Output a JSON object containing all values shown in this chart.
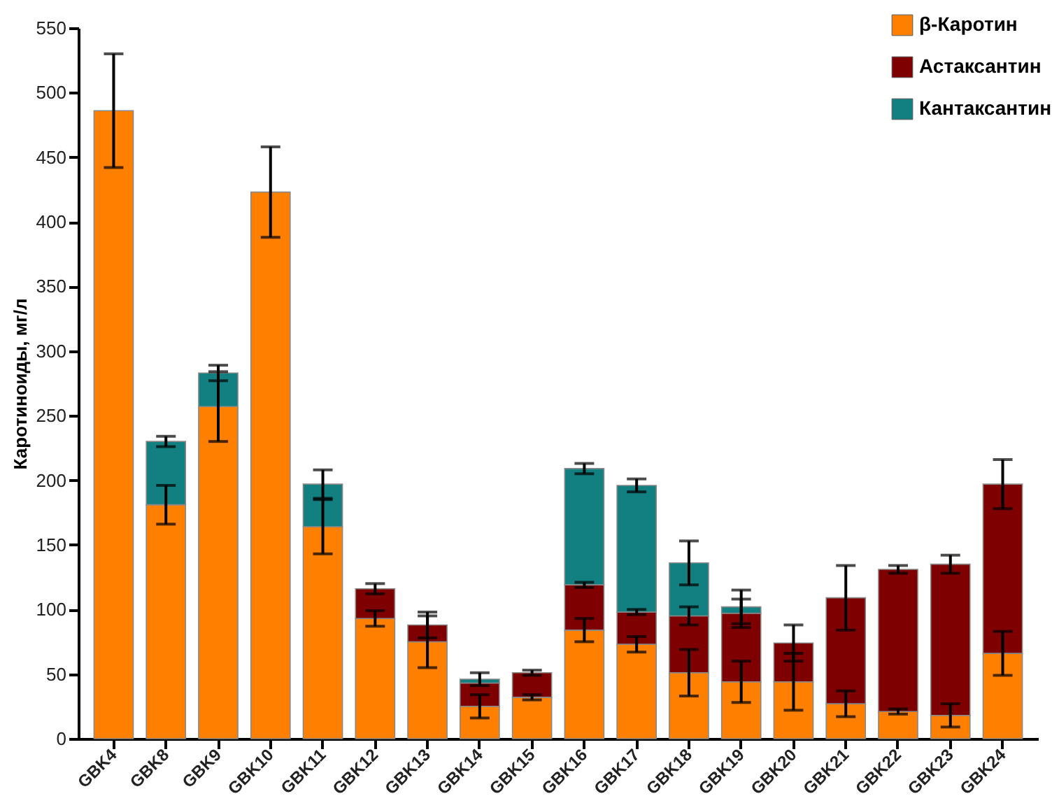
{
  "chart_data": {
    "type": "bar",
    "stacked": true,
    "ylabel": "Каротиноиды, мг/л",
    "ylim": [
      0,
      550
    ],
    "yticks": [
      0,
      50,
      100,
      150,
      200,
      250,
      300,
      350,
      400,
      450,
      500,
      550
    ],
    "grid": false,
    "legend": "top right",
    "categories": [
      "GBK4",
      "GBK8",
      "GBK9",
      "GBK10",
      "GBK11",
      "GBK12",
      "GBK13",
      "GBK14",
      "GBK15",
      "GBK16",
      "GBK17",
      "GBK18",
      "GBK19",
      "GBK20",
      "GBK21",
      "GBK22",
      "GBK23",
      "GBK24"
    ],
    "series": [
      {
        "name": "β-Каротин",
        "color": "#ff8000",
        "values": [
          486,
          181,
          257,
          423,
          164,
          93,
          75,
          25,
          32,
          84,
          73,
          51,
          44,
          44,
          27,
          21,
          18,
          66
        ],
        "errors": [
          44,
          15,
          27,
          35,
          21,
          6,
          20,
          9,
          2,
          9,
          6,
          18,
          16,
          22,
          10,
          2,
          9,
          17
        ]
      },
      {
        "name": "Астаксантин",
        "color": "#7f0000",
        "values": [
          null,
          null,
          null,
          null,
          null,
          23,
          13,
          18,
          19,
          35,
          25,
          44,
          53,
          30,
          82,
          110,
          117,
          131
        ],
        "errors": [
          null,
          null,
          null,
          null,
          null,
          4,
          10,
          null,
          2,
          2,
          2,
          7,
          11,
          14,
          25,
          3,
          7,
          19
        ]
      },
      {
        "name": "Кантаксантин",
        "color": "#128080",
        "values": [
          null,
          49,
          26,
          null,
          33,
          null,
          null,
          3,
          null,
          90,
          98,
          41,
          5,
          null,
          null,
          null,
          null,
          null
        ],
        "errors": [
          null,
          4,
          6,
          null,
          11,
          null,
          null,
          5,
          null,
          4,
          5,
          17,
          13,
          null,
          null,
          null,
          null,
          null
        ]
      }
    ]
  }
}
